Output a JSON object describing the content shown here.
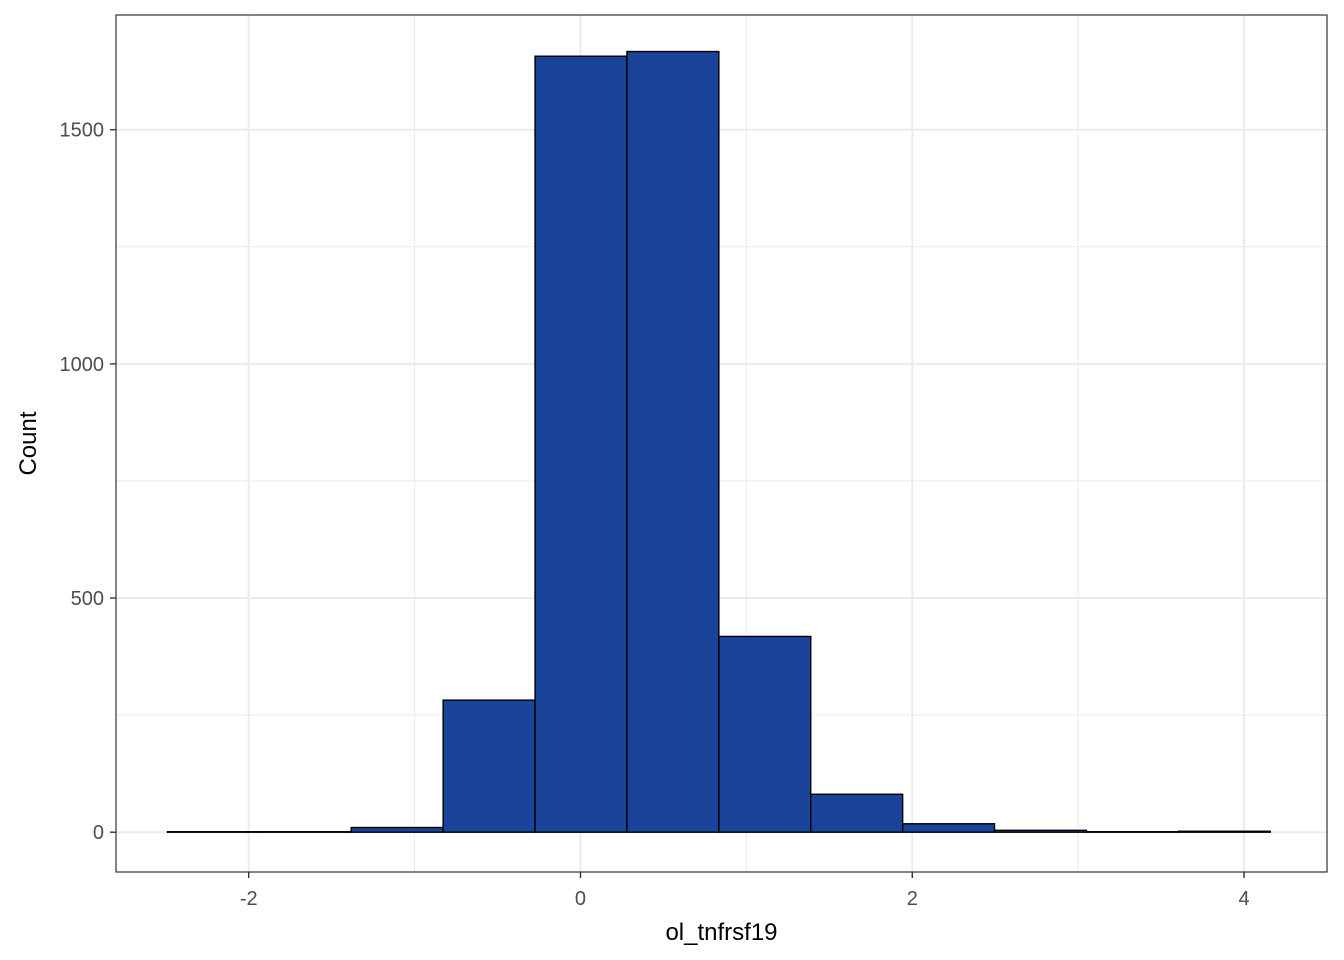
{
  "chart_data": {
    "type": "bar",
    "subtype": "histogram",
    "title": "",
    "xlabel": "ol_tnfrsf19",
    "ylabel": "Count",
    "xlim": [
      -2.8,
      4.5
    ],
    "ylim": [
      -85,
      1745
    ],
    "x_ticks": [
      -2,
      0,
      2,
      4
    ],
    "y_ticks": [
      0,
      500,
      1000,
      1500
    ],
    "x_tick_labels": [
      "-2",
      "0",
      "2",
      "4"
    ],
    "y_tick_labels": [
      "0",
      "500",
      "1000",
      "1500"
    ],
    "bin_width": 0.554,
    "bins": [
      {
        "x0": -2.49,
        "x1": -1.936,
        "count": 1
      },
      {
        "x0": -1.936,
        "x1": -1.382,
        "count": 1
      },
      {
        "x0": -1.382,
        "x1": -0.828,
        "count": 10
      },
      {
        "x0": -0.828,
        "x1": -0.274,
        "count": 282
      },
      {
        "x0": -0.274,
        "x1": 0.28,
        "count": 1657
      },
      {
        "x0": 0.28,
        "x1": 0.834,
        "count": 1667
      },
      {
        "x0": 0.834,
        "x1": 1.388,
        "count": 418
      },
      {
        "x0": 1.388,
        "x1": 1.942,
        "count": 81
      },
      {
        "x0": 1.942,
        "x1": 2.496,
        "count": 18
      },
      {
        "x0": 2.496,
        "x1": 3.05,
        "count": 4
      },
      {
        "x0": 3.05,
        "x1": 3.604,
        "count": 1
      },
      {
        "x0": 3.604,
        "x1": 4.158,
        "count": 2
      }
    ],
    "fill_color": "#1a4499",
    "outline_color": "#000000",
    "grid": true,
    "grid_color": "#ebebeb",
    "panel_border_color": "#333333",
    "legend": "none"
  }
}
